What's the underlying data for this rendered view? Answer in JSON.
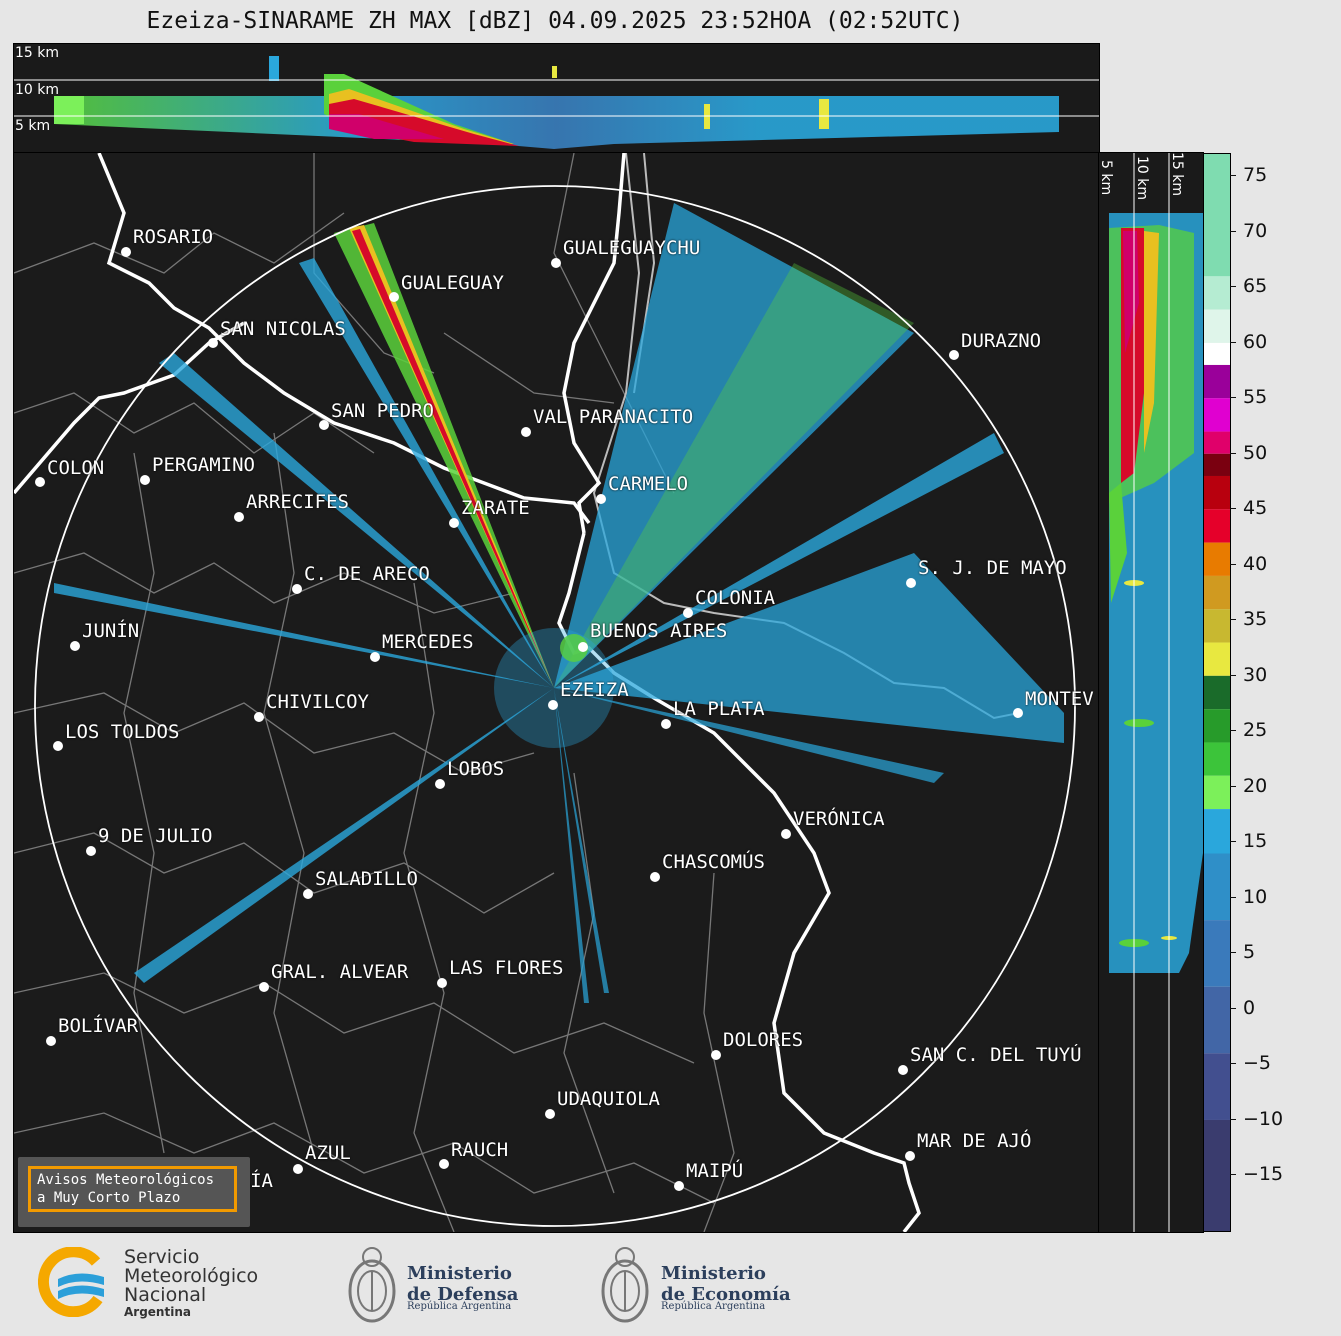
{
  "title": "Ezeiza-SINARAME ZH MAX [dBZ] 04.09.2025 23:52HOA (02:52UTC)",
  "height_labels": {
    "top": [
      "15 km",
      "10 km",
      "5 km"
    ],
    "side": [
      "5 km",
      "10 km",
      "15 km"
    ]
  },
  "colorbar": {
    "unit": "dBZ",
    "ticks": [
      "75",
      "70",
      "65",
      "60",
      "55",
      "50",
      "45",
      "40",
      "35",
      "30",
      "25",
      "20",
      "15",
      "10",
      "5",
      "0",
      "−5",
      "−10",
      "−15"
    ],
    "range": [
      -20,
      77
    ]
  },
  "cities": [
    {
      "name": "ROSARIO"
    },
    {
      "name": "GUALEGUAYCHU"
    },
    {
      "name": "GUALEGUAY"
    },
    {
      "name": "SAN NICOLAS"
    },
    {
      "name": "DURAZNO"
    },
    {
      "name": "SAN PEDRO"
    },
    {
      "name": "VAL PARANACITO"
    },
    {
      "name": "COLON"
    },
    {
      "name": "PERGAMINO"
    },
    {
      "name": "CARMELO"
    },
    {
      "name": "ARRECIFES"
    },
    {
      "name": "ZARATE"
    },
    {
      "name": "S. J. DE MAYO"
    },
    {
      "name": "C. DE ARECO"
    },
    {
      "name": "COLONIA"
    },
    {
      "name": "JUNÍN"
    },
    {
      "name": "BUENOS AIRES"
    },
    {
      "name": "MERCEDES"
    },
    {
      "name": "EZEIZA"
    },
    {
      "name": "MONTEV"
    },
    {
      "name": "CHIVILCOY"
    },
    {
      "name": "LA PLATA"
    },
    {
      "name": "LOS TOLDOS"
    },
    {
      "name": "LOBOS"
    },
    {
      "name": "VERÓNICA"
    },
    {
      "name": "9 DE JULIO"
    },
    {
      "name": "CHASCOMÚS"
    },
    {
      "name": "SALADILLO"
    },
    {
      "name": "GRAL. ALVEAR"
    },
    {
      "name": "LAS FLORES"
    },
    {
      "name": "BOLÍVAR"
    },
    {
      "name": "DOLORES"
    },
    {
      "name": "SAN C. DEL TUYÚ"
    },
    {
      "name": "UDAQUIOLA"
    },
    {
      "name": "MAR DE AJÓ"
    },
    {
      "name": "AZUL"
    },
    {
      "name": "RAUCH"
    },
    {
      "name": "OLAVARRÍA"
    },
    {
      "name": "MAIPÚ"
    }
  ],
  "notice": {
    "line1": "Avisos Meteorológicos",
    "line2": "a Muy Corto Plazo"
  },
  "logos": {
    "smn": {
      "line1": "Servicio",
      "line2": "Meteorológico",
      "line3": "Nacional",
      "line4": "Argentina"
    },
    "defensa": {
      "line1": "Ministerio",
      "line2": "de Defensa",
      "sub": "República Argentina"
    },
    "economia": {
      "line1": "Ministerio",
      "line2": "de Economía",
      "sub": "República Argentina"
    }
  }
}
